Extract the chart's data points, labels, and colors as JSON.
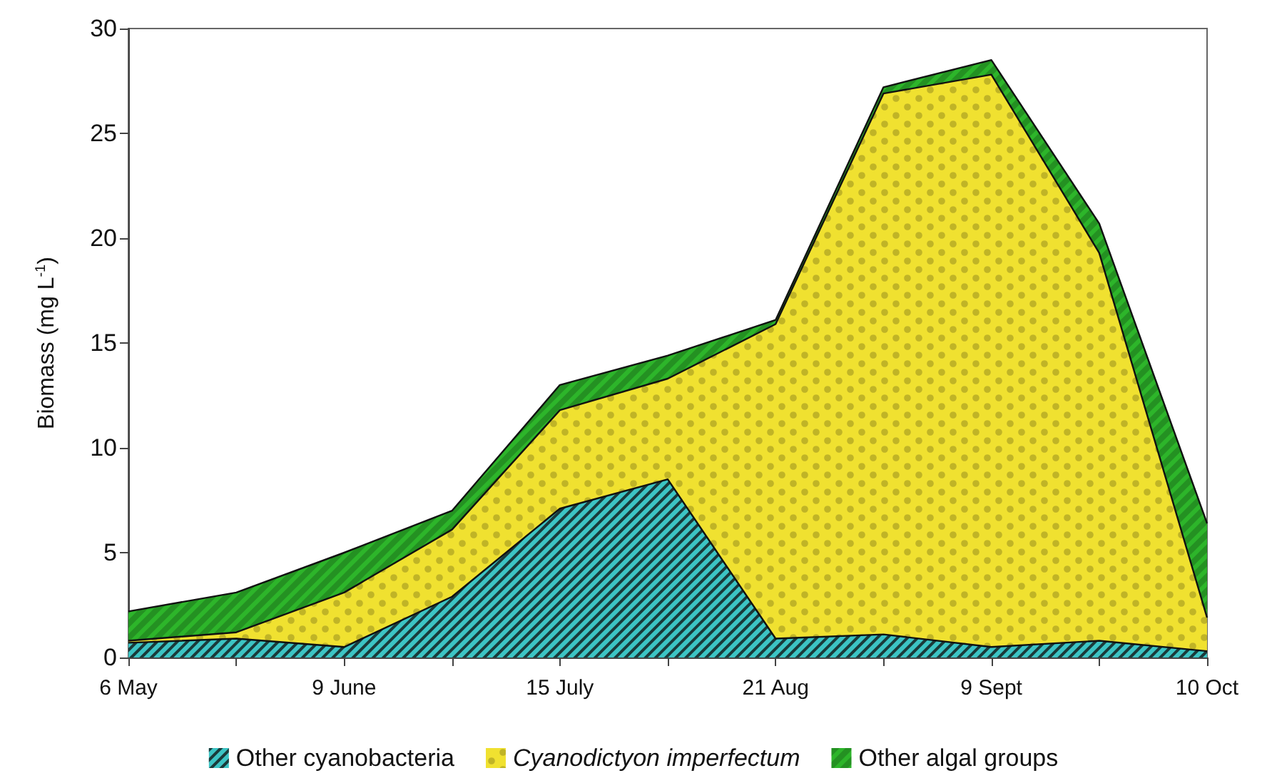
{
  "chart_data": {
    "type": "area",
    "stacked": true,
    "ylabel": "Biomass (mg L$^{-1}$)",
    "categories": [
      "6 May",
      null,
      "9 June",
      null,
      "15 July",
      null,
      "21 Aug",
      null,
      "9 Sept",
      null,
      "10 Oct"
    ],
    "series": [
      {
        "name": "Other cyanobacteria",
        "color": "#3cc4c4",
        "values": [
          0.7,
          0.9,
          0.5,
          2.9,
          7.1,
          8.5,
          0.9,
          1.1,
          0.5,
          0.8,
          0.3
        ]
      },
      {
        "name": "Cyanodictyon imperfectum",
        "color": "#f0e130",
        "values": [
          0.1,
          0.3,
          2.6,
          3.2,
          4.7,
          4.8,
          15.0,
          25.8,
          27.3,
          18.5,
          1.6
        ]
      },
      {
        "name": "Other algal groups",
        "color": "#2db52a",
        "values": [
          1.4,
          1.9,
          1.9,
          0.9,
          1.2,
          1.1,
          0.2,
          0.3,
          0.7,
          1.4,
          4.5
        ]
      }
    ],
    "ylim": [
      0,
      30
    ],
    "yticks": [
      0,
      5,
      10,
      15,
      20,
      25,
      30
    ],
    "grid": false,
    "legend": "bottom"
  }
}
